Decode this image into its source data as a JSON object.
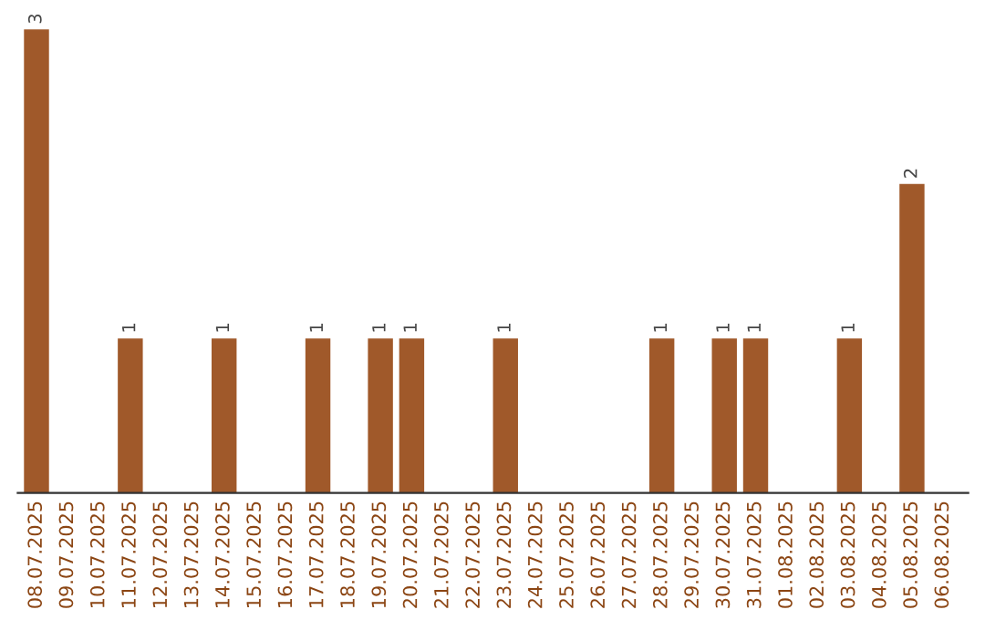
{
  "chart_data": {
    "type": "bar",
    "categories": [
      "08.07.2025",
      "09.07.2025",
      "10.07.2025",
      "11.07.2025",
      "12.07.2025",
      "13.07.2025",
      "14.07.2025",
      "15.07.2025",
      "16.07.2025",
      "17.07.2025",
      "18.07.2025",
      "19.07.2025",
      "20.07.2025",
      "21.07.2025",
      "22.07.2025",
      "23.07.2025",
      "24.07.2025",
      "25.07.2025",
      "26.07.2025",
      "27.07.2025",
      "28.07.2025",
      "29.07.2025",
      "30.07.2025",
      "31.07.2025",
      "01.08.2025",
      "02.08.2025",
      "03.08.2025",
      "04.08.2025",
      "05.08.2025",
      "06.08.2025"
    ],
    "values": [
      3,
      0,
      0,
      1,
      0,
      0,
      1,
      0,
      0,
      1,
      0,
      1,
      1,
      0,
      0,
      1,
      0,
      0,
      0,
      0,
      1,
      0,
      1,
      1,
      0,
      0,
      1,
      0,
      2,
      0
    ],
    "value_labels": [
      "3",
      null,
      null,
      "1",
      null,
      null,
      "1",
      null,
      null,
      "1",
      null,
      "1",
      "1",
      null,
      null,
      "1",
      null,
      null,
      null,
      null,
      "1",
      null,
      "1",
      "1",
      null,
      null,
      "1",
      null,
      "2",
      null
    ],
    "color": "#a0592a",
    "tick_labels": "x",
    "grid": false,
    "legend": false
  }
}
